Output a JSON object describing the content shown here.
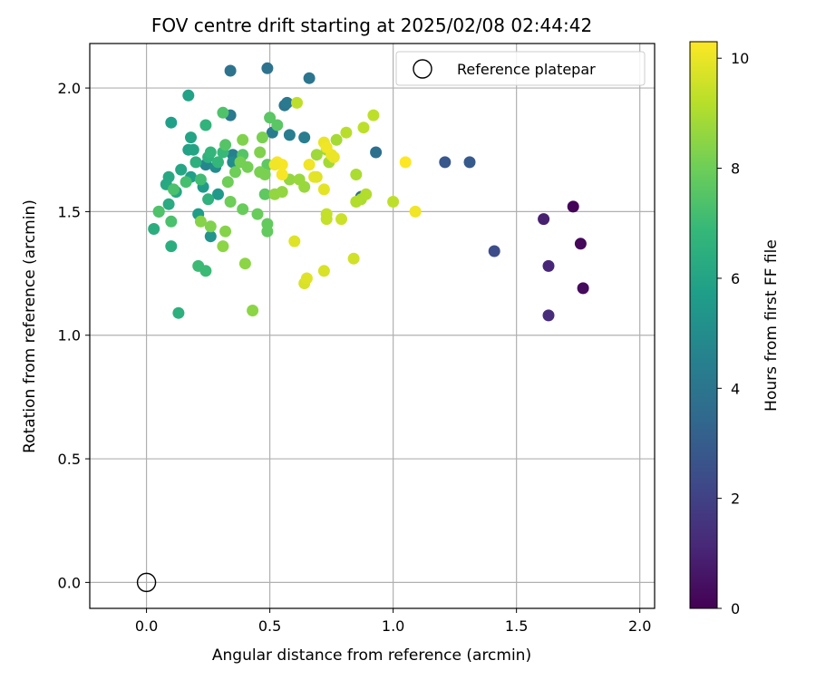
{
  "chart_data": {
    "type": "scatter",
    "title": "FOV centre drift starting at 2025/02/08 02:44:42",
    "xlabel": "Angular distance from reference (arcmin)",
    "ylabel": "Rotation from reference (arcmin)",
    "xlim": [
      -0.23,
      2.06
    ],
    "ylim": [
      -0.105,
      2.18
    ],
    "xticks": [
      "0.0",
      "0.5",
      "1.0",
      "1.5",
      "2.0"
    ],
    "xtick_values": [
      0.0,
      0.5,
      1.0,
      1.5,
      2.0
    ],
    "yticks": [
      "0.0",
      "0.5",
      "1.0",
      "1.5",
      "2.0"
    ],
    "ytick_values": [
      0.0,
      0.5,
      1.0,
      1.5,
      2.0
    ],
    "grid": true,
    "legend": {
      "placement": "top-right",
      "label": "Reference platepar"
    },
    "reference_point": {
      "x": 0.0,
      "y": 0.0
    },
    "colorbar": {
      "label": "Hours from first FF file",
      "min": 0,
      "max": 10.3,
      "ticks": [
        "0",
        "2",
        "4",
        "6",
        "8",
        "10"
      ],
      "tick_values": [
        0,
        2,
        4,
        6,
        8,
        10
      ],
      "colormap": "viridis"
    },
    "colormap_stops": [
      "#440154",
      "#482878",
      "#3e4a89",
      "#31688e",
      "#26828e",
      "#1f9e89",
      "#35b779",
      "#6ece58",
      "#b5de2b",
      "#fde725"
    ],
    "series": [
      {
        "points": [
          [
            1.73,
            1.52,
            0.1
          ],
          [
            1.76,
            1.37,
            0.2
          ],
          [
            1.77,
            1.19,
            0.3
          ],
          [
            1.61,
            1.47,
            0.9
          ],
          [
            1.63,
            1.28,
            1.1
          ],
          [
            1.63,
            1.08,
            1.3
          ],
          [
            1.41,
            1.34,
            2.4
          ],
          [
            1.21,
            1.7,
            2.8
          ],
          [
            1.31,
            1.7,
            2.9
          ],
          [
            0.87,
            1.56,
            3.6
          ],
          [
            0.93,
            1.74,
            3.8
          ],
          [
            0.34,
            2.07,
            3.9
          ],
          [
            0.49,
            2.08,
            3.9
          ],
          [
            0.66,
            2.04,
            4.0
          ],
          [
            0.56,
            1.93,
            4.1
          ],
          [
            0.57,
            1.94,
            4.2
          ],
          [
            0.34,
            1.89,
            4.2
          ],
          [
            0.51,
            1.82,
            4.3
          ],
          [
            0.58,
            1.81,
            4.4
          ],
          [
            0.64,
            1.8,
            4.4
          ],
          [
            0.35,
            1.73,
            4.5
          ],
          [
            0.24,
            1.69,
            4.8
          ],
          [
            0.28,
            1.68,
            5.0
          ],
          [
            0.35,
            1.7,
            5.0
          ],
          [
            0.26,
            1.4,
            5.3
          ],
          [
            0.29,
            1.57,
            5.5
          ],
          [
            0.23,
            1.6,
            5.6
          ],
          [
            0.21,
            1.49,
            5.7
          ],
          [
            0.18,
            1.64,
            5.8
          ],
          [
            0.1,
            1.86,
            5.8
          ],
          [
            0.17,
            1.97,
            5.9
          ],
          [
            0.17,
            1.75,
            5.9
          ],
          [
            0.18,
            1.8,
            6.0
          ],
          [
            0.19,
            1.75,
            6.0
          ],
          [
            0.14,
            1.67,
            6.1
          ],
          [
            0.12,
            1.58,
            6.1
          ],
          [
            0.08,
            1.61,
            6.2
          ],
          [
            0.09,
            1.64,
            6.2
          ],
          [
            0.09,
            1.53,
            6.3
          ],
          [
            0.05,
            1.5,
            6.3
          ],
          [
            0.03,
            1.43,
            6.4
          ],
          [
            0.1,
            1.36,
            6.4
          ],
          [
            0.13,
            1.09,
            6.5
          ],
          [
            0.2,
            1.7,
            6.5
          ],
          [
            0.25,
            1.55,
            6.6
          ],
          [
            0.25,
            1.72,
            6.6
          ],
          [
            0.24,
            1.85,
            6.7
          ],
          [
            0.26,
            1.74,
            6.8
          ],
          [
            0.29,
            1.7,
            6.8
          ],
          [
            0.31,
            1.74,
            6.9
          ],
          [
            0.21,
            1.28,
            7.0
          ],
          [
            0.24,
            1.26,
            7.0
          ],
          [
            0.22,
            1.63,
            7.1
          ],
          [
            0.16,
            1.62,
            7.2
          ],
          [
            0.1,
            1.46,
            7.3
          ],
          [
            0.11,
            1.59,
            7.3
          ],
          [
            0.05,
            1.5,
            7.4
          ],
          [
            0.31,
            1.9,
            7.4
          ],
          [
            0.32,
            1.77,
            7.5
          ],
          [
            0.39,
            1.73,
            7.5
          ],
          [
            0.5,
            1.88,
            7.6
          ],
          [
            0.53,
            1.85,
            7.6
          ],
          [
            0.49,
            1.69,
            7.7
          ],
          [
            0.48,
            1.57,
            7.7
          ],
          [
            0.49,
            1.42,
            7.8
          ],
          [
            0.49,
            1.45,
            7.8
          ],
          [
            0.45,
            1.49,
            7.9
          ],
          [
            0.39,
            1.51,
            7.9
          ],
          [
            0.34,
            1.54,
            8.0
          ],
          [
            0.33,
            1.62,
            8.0
          ],
          [
            0.36,
            1.66,
            8.0
          ],
          [
            0.38,
            1.7,
            8.1
          ],
          [
            0.41,
            1.68,
            8.1
          ],
          [
            0.46,
            1.66,
            8.2
          ],
          [
            0.48,
            1.65,
            8.2
          ],
          [
            0.47,
            1.8,
            8.2
          ],
          [
            0.39,
            1.79,
            8.3
          ],
          [
            0.46,
            1.74,
            8.3
          ],
          [
            0.26,
            1.44,
            8.3
          ],
          [
            0.22,
            1.46,
            8.4
          ],
          [
            0.32,
            1.42,
            8.4
          ],
          [
            0.31,
            1.36,
            8.5
          ],
          [
            0.4,
            1.29,
            8.5
          ],
          [
            0.43,
            1.1,
            8.5
          ],
          [
            0.52,
            1.57,
            8.6
          ],
          [
            0.55,
            1.58,
            8.6
          ],
          [
            0.58,
            1.63,
            8.6
          ],
          [
            0.62,
            1.63,
            8.7
          ],
          [
            0.64,
            1.6,
            8.7
          ],
          [
            0.69,
            1.73,
            8.8
          ],
          [
            0.73,
            1.75,
            8.8
          ],
          [
            0.74,
            1.7,
            8.9
          ],
          [
            0.77,
            1.79,
            8.9
          ],
          [
            0.85,
            1.65,
            9.0
          ],
          [
            0.87,
            1.55,
            9.0
          ],
          [
            0.89,
            1.57,
            9.1
          ],
          [
            0.85,
            1.54,
            9.1
          ],
          [
            0.81,
            1.82,
            9.2
          ],
          [
            0.88,
            1.84,
            9.3
          ],
          [
            0.92,
            1.89,
            9.3
          ],
          [
            0.61,
            1.94,
            9.3
          ],
          [
            0.73,
            1.47,
            9.4
          ],
          [
            0.73,
            1.49,
            9.4
          ],
          [
            0.79,
            1.47,
            9.5
          ],
          [
            0.84,
            1.31,
            9.6
          ],
          [
            0.72,
            1.26,
            9.7
          ],
          [
            0.64,
            1.21,
            9.7
          ],
          [
            0.65,
            1.23,
            9.8
          ],
          [
            0.6,
            1.38,
            9.8
          ],
          [
            0.69,
            1.64,
            9.8
          ],
          [
            0.68,
            1.64,
            9.9
          ],
          [
            0.72,
            1.59,
            9.9
          ],
          [
            0.75,
            1.73,
            10.0
          ],
          [
            0.76,
            1.72,
            10.0
          ],
          [
            0.72,
            1.78,
            10.0
          ],
          [
            0.73,
            1.76,
            10.1
          ],
          [
            0.66,
            1.69,
            10.1
          ],
          [
            0.55,
            1.69,
            10.2
          ],
          [
            0.55,
            1.65,
            10.2
          ],
          [
            0.53,
            1.7,
            10.2
          ],
          [
            0.52,
            1.69,
            10.1
          ],
          [
            1.0,
            1.54,
            9.3
          ],
          [
            1.05,
            1.7,
            10.3
          ],
          [
            1.09,
            1.5,
            10.1
          ]
        ]
      }
    ]
  }
}
